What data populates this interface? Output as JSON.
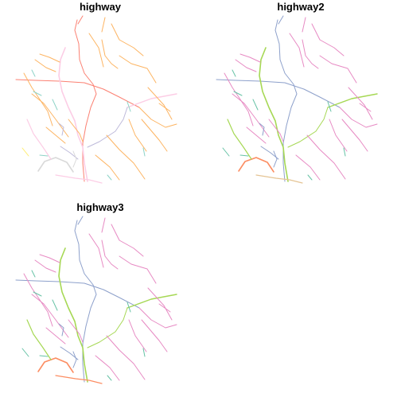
{
  "panels": [
    {
      "title": "highway"
    },
    {
      "title": "highway2"
    },
    {
      "title": "highway3"
    }
  ],
  "colors": {
    "orange": "#fdb462",
    "red": "#fb8072",
    "pink": "#fccde5",
    "teal": "#8dd3c7",
    "grey": "#bebada",
    "lightgrey": "#d9d9d9",
    "yellow": "#ffed6f",
    "magenta": "#e78ac3",
    "blue": "#8da0cb",
    "green": "#a6d854",
    "salmon": "#fc8d62",
    "aqua": "#66c2a5",
    "brown": "#e5c494"
  }
}
